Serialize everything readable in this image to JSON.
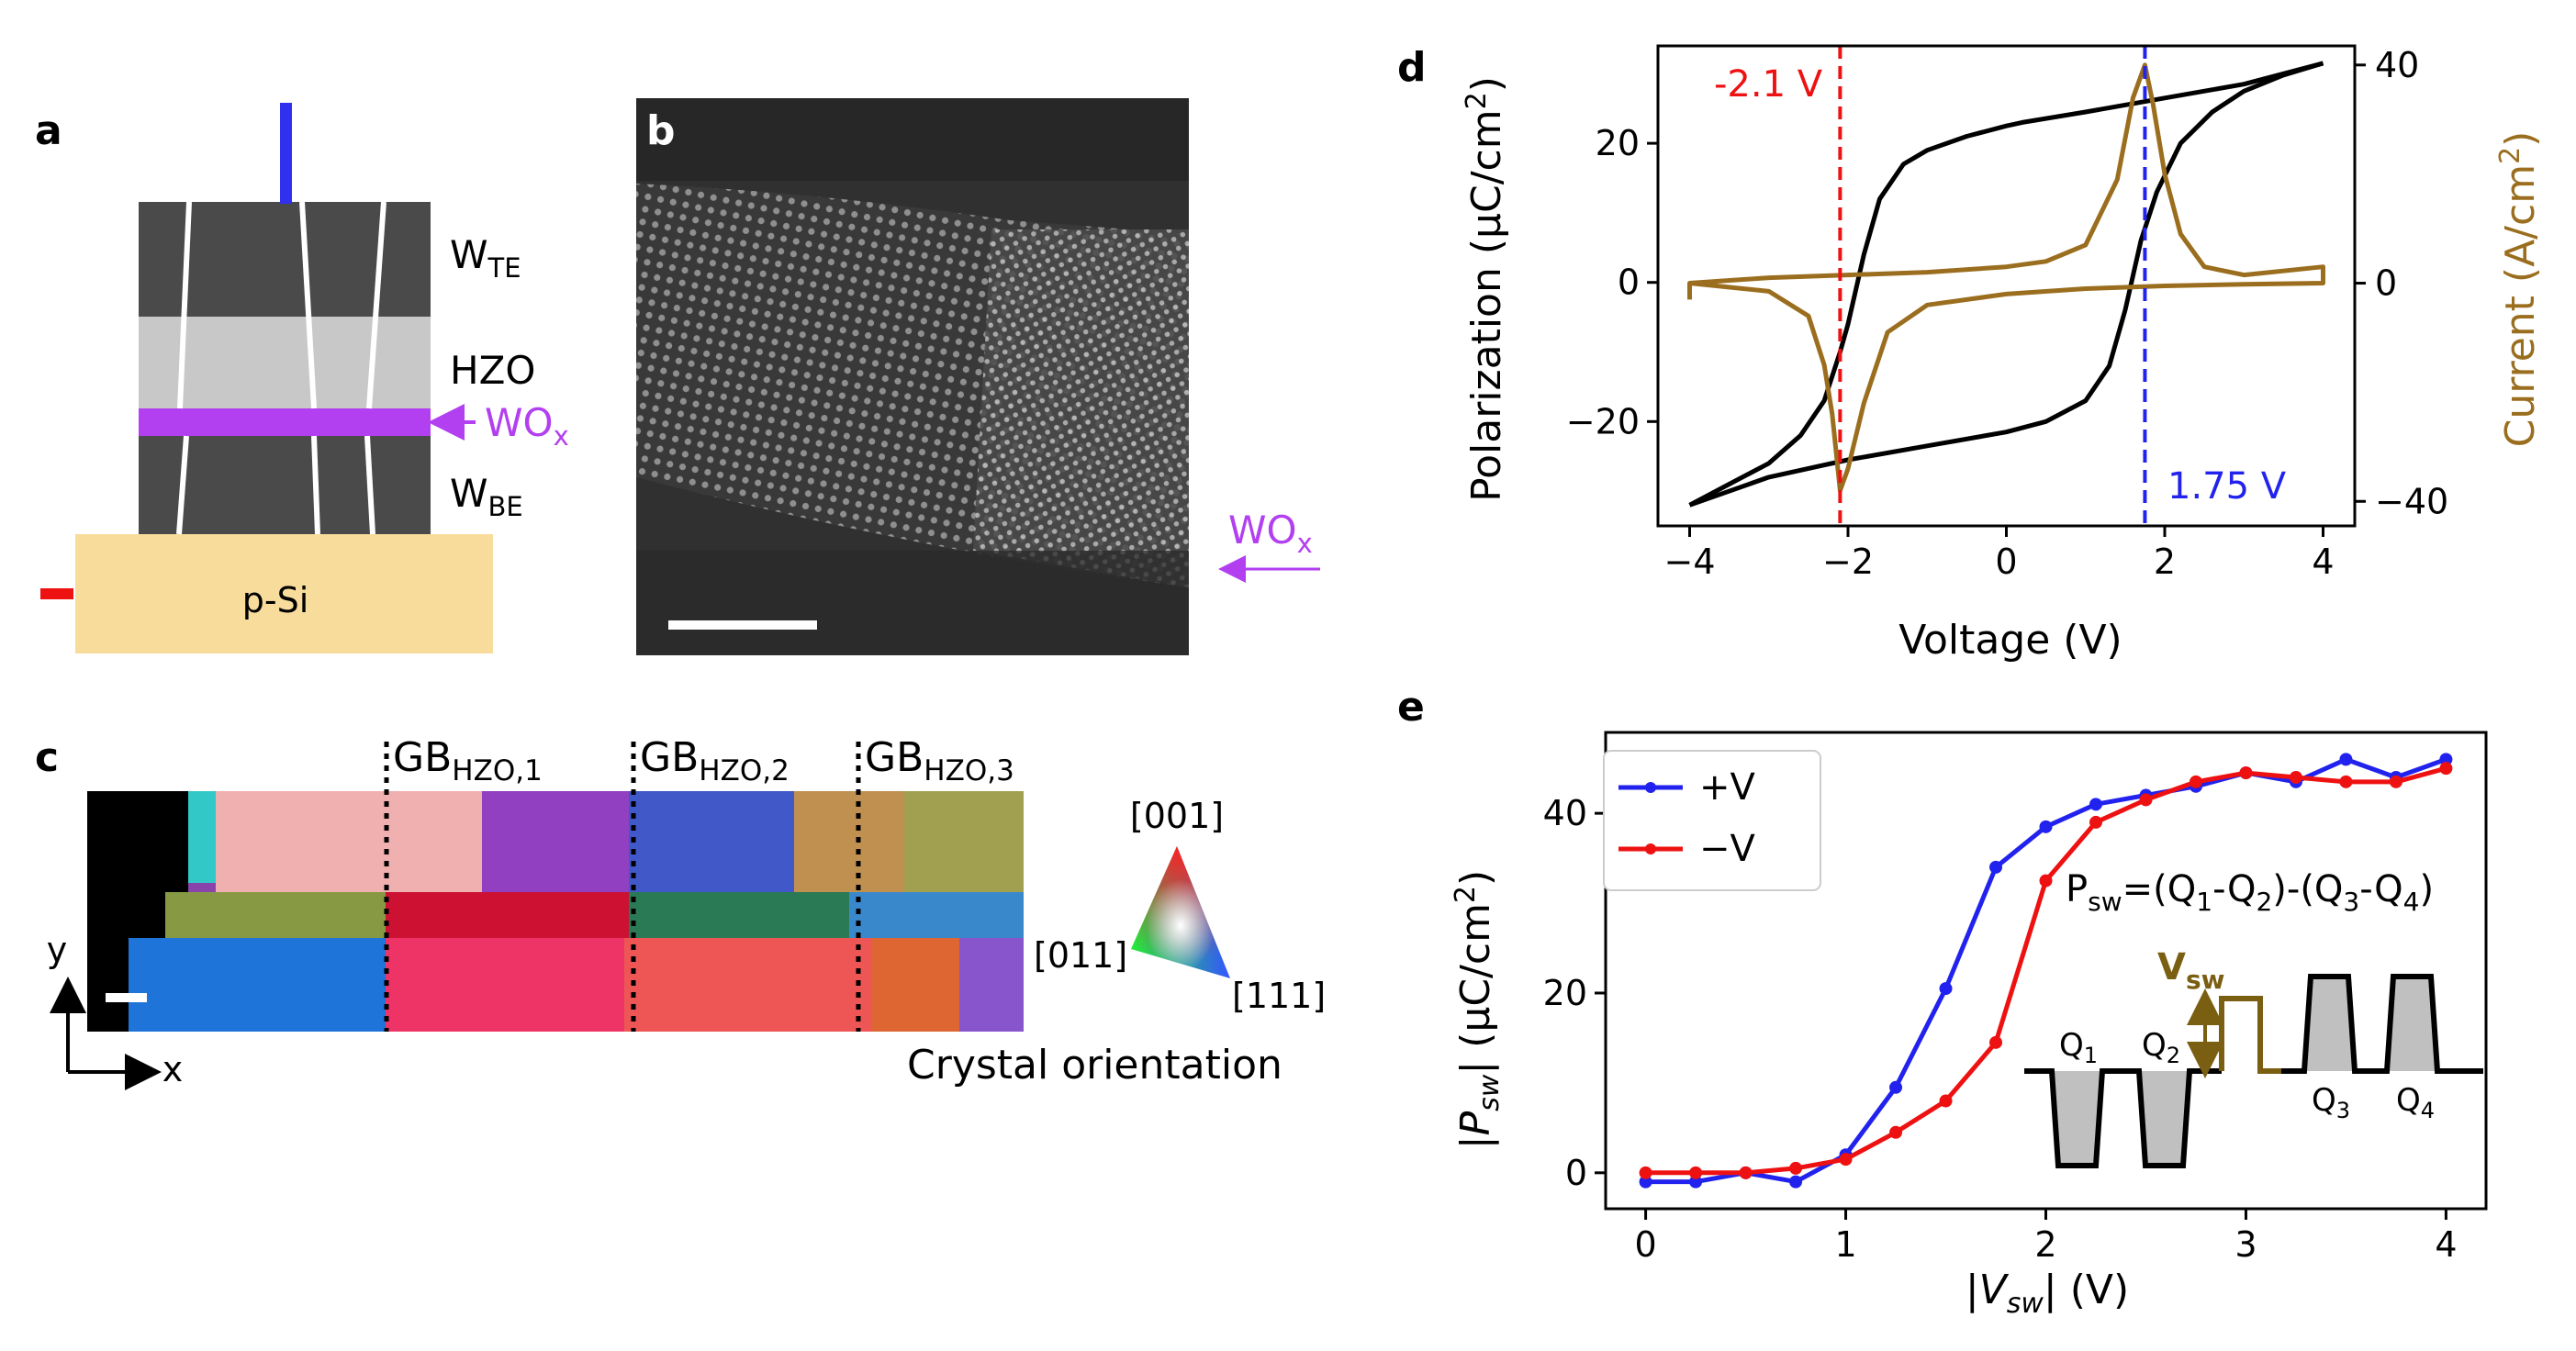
{
  "panels": {
    "a": {
      "label": "a",
      "layers": {
        "top": "W",
        "top_sub": "TE",
        "mid": "HZO",
        "interlayer": "WO",
        "interlayer_sub": "x",
        "bottom": "W",
        "bottom_sub": "BE",
        "substrate": "p-Si"
      },
      "colors": {
        "metal": "#4a4a4a",
        "hzo": "#c8c8c8",
        "wox": "#b23ff0",
        "si": "#f7dc9b",
        "top_contact": "#3030ee",
        "bottom_contact": "#ee1111"
      }
    },
    "b": {
      "label": "b",
      "annotation": "WO",
      "annotation_sub": "x",
      "colors": {
        "annotation": "#b23ff0"
      }
    },
    "c": {
      "label": "c",
      "gb_labels": [
        {
          "main": "GB",
          "sub": "HZO,1"
        },
        {
          "main": "GB",
          "sub": "HZO,2"
        },
        {
          "main": "GB",
          "sub": "HZO,3"
        }
      ],
      "axis_y": "y",
      "axis_x": "x",
      "triangle_labels": {
        "top": "[001]",
        "left": "[011]",
        "right": "[111]"
      },
      "legend_title": "Crystal orientation"
    },
    "d": {
      "label": "d"
    },
    "e": {
      "label": "e"
    }
  },
  "chart_data": [
    {
      "id": "d",
      "type": "line",
      "xlabel": "Voltage (V)",
      "ylabel_left": "Polarization (μC/cm²)",
      "ylabel_left_parts": {
        "pre": "Polarization (μC/cm",
        "sup": "2",
        "post": ")"
      },
      "ylabel_right": "Current (A/cm²)",
      "ylabel_right_parts": {
        "pre": "Current (A/cm",
        "sup": "2",
        "post": ")"
      },
      "xlim": [
        -4.4,
        4.4
      ],
      "ylim_left": [
        -35,
        34
      ],
      "ylim_right": [
        -44.5,
        43.5
      ],
      "xticks": [
        -4,
        -2,
        0,
        2,
        4
      ],
      "xtick_labels": [
        "−4",
        "−2",
        "0",
        "2",
        "4"
      ],
      "yticks_left": [
        -20,
        0,
        20
      ],
      "ytick_labels_left": [
        "−20",
        "0",
        "20"
      ],
      "yticks_right": [
        -40,
        0,
        40
      ],
      "ytick_labels_right": [
        "−40",
        "0",
        "40"
      ],
      "vlines": [
        {
          "x": -2.1,
          "label": "-2.1 V",
          "color": "#ee1111"
        },
        {
          "x": 1.75,
          "label": "1.75 V",
          "color": "#2222ee"
        }
      ],
      "series": [
        {
          "name": "Polarization (upper branch)",
          "axis": "left",
          "color": "#000000",
          "x": [
            4.0,
            3.0,
            2.0,
            1.0,
            0.2,
            0.0,
            -0.5,
            -1.0,
            -1.3,
            -1.6,
            -1.8,
            -2.0,
            -2.1,
            -2.3,
            -2.6,
            -3.0,
            -3.5,
            -4.0
          ],
          "y": [
            31.5,
            28.5,
            26.5,
            24.5,
            23.0,
            22.5,
            21.0,
            19.0,
            17.0,
            12.0,
            4.0,
            -6.0,
            -10.0,
            -17.0,
            -22.0,
            -26.0,
            -29.0,
            -32.0
          ]
        },
        {
          "name": "Polarization (lower branch)",
          "axis": "left",
          "color": "#000000",
          "x": [
            -4.0,
            -3.0,
            -2.0,
            -1.0,
            0.0,
            0.5,
            1.0,
            1.3,
            1.5,
            1.7,
            1.9,
            2.2,
            2.6,
            3.0,
            3.5,
            4.0
          ],
          "y": [
            -32.0,
            -28.0,
            -25.5,
            -23.5,
            -21.5,
            -20.0,
            -17.0,
            -12.0,
            -4.0,
            6.0,
            13.0,
            20.0,
            24.5,
            27.5,
            29.8,
            31.5
          ]
        },
        {
          "name": "Current",
          "axis": "right",
          "color": "#9a6e1e",
          "x": [
            -4.0,
            -4.0,
            -3.0,
            -2.5,
            -2.3,
            -2.2,
            -2.1,
            -2.0,
            -1.8,
            -1.5,
            -1.0,
            0.0,
            1.0,
            2.0,
            3.0,
            4.0,
            4.0,
            3.0,
            2.5,
            2.2,
            2.0,
            1.85,
            1.75,
            1.6,
            1.4,
            1.0,
            0.5,
            0.0,
            -1.0,
            -2.0,
            -3.0,
            -4.0
          ],
          "y": [
            -3.0,
            0.0,
            -1.5,
            -6.0,
            -15.0,
            -24.0,
            -38.0,
            -34.0,
            -22.0,
            -9.0,
            -4.0,
            -2.0,
            -1.0,
            -0.5,
            -0.2,
            0.0,
            3.0,
            1.5,
            3.0,
            9.0,
            20.0,
            33.0,
            40.0,
            34.0,
            19.0,
            7.0,
            4.0,
            3.0,
            2.0,
            1.5,
            1.0,
            0.0
          ]
        }
      ]
    },
    {
      "id": "e",
      "type": "line",
      "xlabel": "|Vsw| (V)",
      "xlabel_parts": {
        "pre": "|",
        "var": "V",
        "sub": "sw",
        "post": "| (V)"
      },
      "ylabel": "|Psw| (μC/cm²)",
      "ylabel_parts": {
        "pre": "|",
        "var": "P",
        "sub": "sw",
        "post": "| (μC/cm",
        "sup": "2",
        "post2": ")"
      },
      "xlim": [
        -0.2,
        4.2
      ],
      "ylim": [
        -4,
        49
      ],
      "xticks": [
        0,
        1,
        2,
        3,
        4
      ],
      "xtick_labels": [
        "0",
        "1",
        "2",
        "3",
        "4"
      ],
      "yticks": [
        0,
        20,
        40
      ],
      "ytick_labels": [
        "0",
        "20",
        "40"
      ],
      "series": [
        {
          "name": "+V",
          "color": "#2222ee",
          "x": [
            0,
            0.25,
            0.5,
            0.75,
            1.0,
            1.25,
            1.5,
            1.75,
            2.0,
            2.25,
            2.5,
            2.75,
            3.0,
            3.25,
            3.5,
            3.75,
            4.0
          ],
          "values": [
            -1,
            -1,
            0,
            -1,
            2,
            9.5,
            20.5,
            34,
            38.5,
            41,
            42,
            43,
            44.5,
            43.5,
            46,
            44,
            46
          ]
        },
        {
          "name": "−V",
          "color": "#ee1111",
          "x": [
            0,
            0.25,
            0.5,
            0.75,
            1.0,
            1.25,
            1.5,
            1.75,
            2.0,
            2.25,
            2.5,
            2.75,
            3.0,
            3.25,
            3.5,
            3.75,
            4.0
          ],
          "values": [
            0,
            0,
            0,
            0.5,
            1.5,
            4.5,
            8,
            14.5,
            32.5,
            39,
            41.5,
            43.5,
            44.5,
            44,
            43.5,
            43.5,
            45
          ]
        }
      ],
      "formula": {
        "p": "P",
        "psub": "sw",
        "eq": "=(Q",
        "parts": [
          "1",
          "-Q",
          "2",
          ")-(Q",
          "3",
          "-Q",
          "4",
          ")"
        ]
      },
      "inset": {
        "v_label": "V",
        "v_sub": "sw",
        "q_labels": [
          "Q",
          "Q",
          "Q",
          "Q"
        ],
        "q_subs": [
          "1",
          "2",
          "3",
          "4"
        ],
        "pulse_color": "#7a5e12"
      }
    }
  ]
}
